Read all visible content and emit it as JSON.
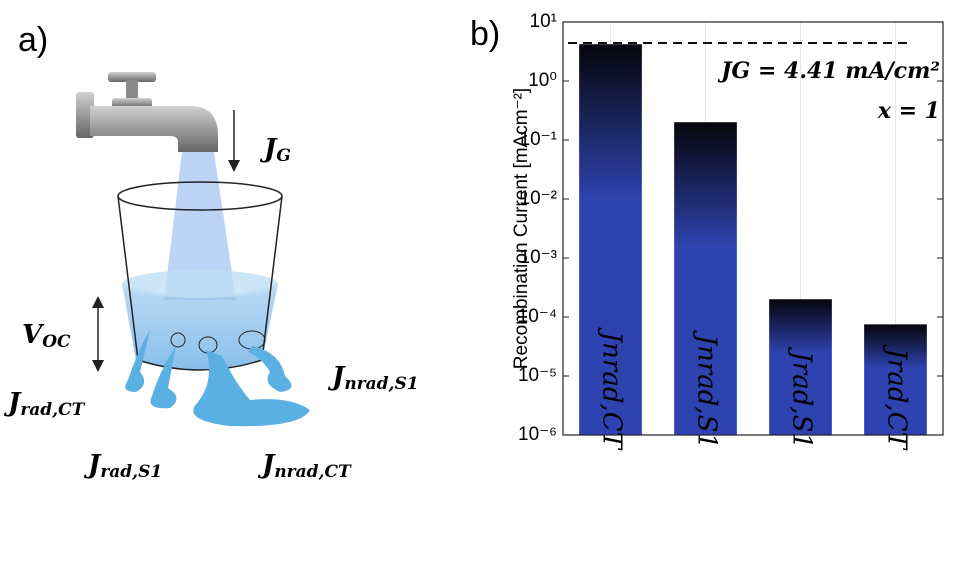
{
  "panel_a": {
    "label": "a)",
    "labels": [
      {
        "main": "J",
        "sub": "G"
      },
      {
        "main": "V",
        "sub": "OC"
      },
      {
        "main": "J",
        "sub": "rad,CT"
      },
      {
        "main": "J",
        "sub": "rad,S1"
      },
      {
        "main": "J",
        "sub": "nrad,CT"
      },
      {
        "main": "J",
        "sub": "nrad,S1"
      }
    ]
  },
  "chart_data": {
    "type": "bar",
    "panel_label": "b)",
    "ylabel": "Recombination Current [mAcm⁻²]",
    "categories": [
      "Jnrad,CT",
      "Jnrad,S1",
      "Jrad,S1",
      "Jrad,CT"
    ],
    "values": [
      4.2,
      0.2,
      0.0002,
      7.5e-05
    ],
    "color": "#2e43b0",
    "log_y": true,
    "ylim": [
      1e-06,
      10
    ],
    "yticks": [
      {
        "value": 1e-06,
        "label": "10⁻⁶"
      },
      {
        "value": 1e-05,
        "label": "10⁻⁵"
      },
      {
        "value": 0.0001,
        "label": "10⁻⁴"
      },
      {
        "value": 0.001,
        "label": "10⁻³"
      },
      {
        "value": 0.01,
        "label": "10⁻²"
      },
      {
        "value": 0.1,
        "label": "10⁻¹"
      },
      {
        "value": 1,
        "label": "10⁰"
      },
      {
        "value": 10,
        "label": "10¹"
      }
    ],
    "reference_line": 4.41,
    "annotations": [
      "JG = 4.41 mA/cm²",
      "x = 1"
    ]
  }
}
